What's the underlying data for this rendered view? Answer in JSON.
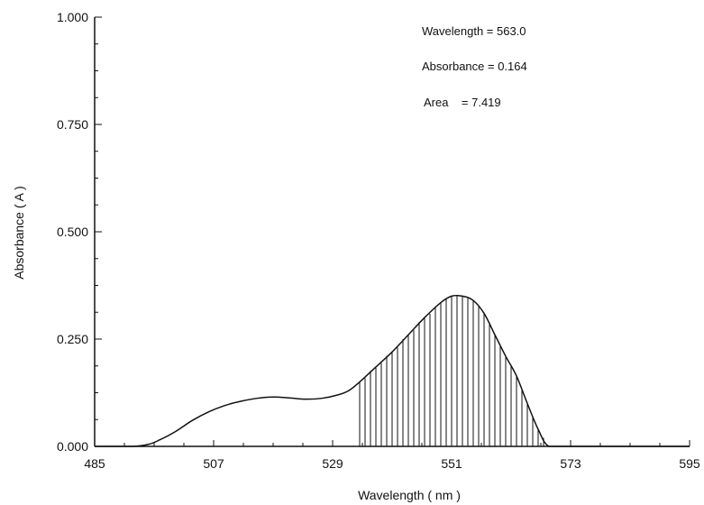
{
  "chart_data": {
    "type": "area",
    "xlabel": "Wavelength ( nm )",
    "ylabel": "Absorbance ( A )",
    "xlim": [
      485,
      595
    ],
    "ylim": [
      0,
      1.0
    ],
    "x_ticks": [
      "485",
      "507",
      "529",
      "551",
      "573",
      "595"
    ],
    "y_ticks": [
      "0.000",
      "0.250",
      "0.500",
      "0.750",
      "1.000"
    ],
    "grid": false,
    "shaded_region": {
      "x_start": 534,
      "x_end": 569,
      "style": "vertical hatching"
    },
    "series": [
      {
        "x": [
          485,
          492,
          495,
          497,
          500,
          503,
          506,
          509,
          512,
          515,
          518,
          521,
          524,
          527,
          530,
          532,
          534,
          537,
          540,
          543,
          546,
          549,
          551,
          553,
          555,
          557,
          559,
          561,
          563,
          565,
          567,
          569,
          573,
          595
        ],
        "values": [
          0.0,
          0.0,
          0.005,
          0.015,
          0.035,
          0.06,
          0.08,
          0.095,
          0.105,
          0.112,
          0.115,
          0.113,
          0.11,
          0.112,
          0.12,
          0.13,
          0.15,
          0.185,
          0.22,
          0.26,
          0.3,
          0.335,
          0.35,
          0.35,
          0.34,
          0.31,
          0.26,
          0.21,
          0.164,
          0.1,
          0.04,
          0.0,
          0.0,
          0.0
        ]
      }
    ],
    "annotations": [
      "Wavelength = 563.0",
      "Absorbance = 0.164",
      "Area    = 7.419"
    ]
  }
}
